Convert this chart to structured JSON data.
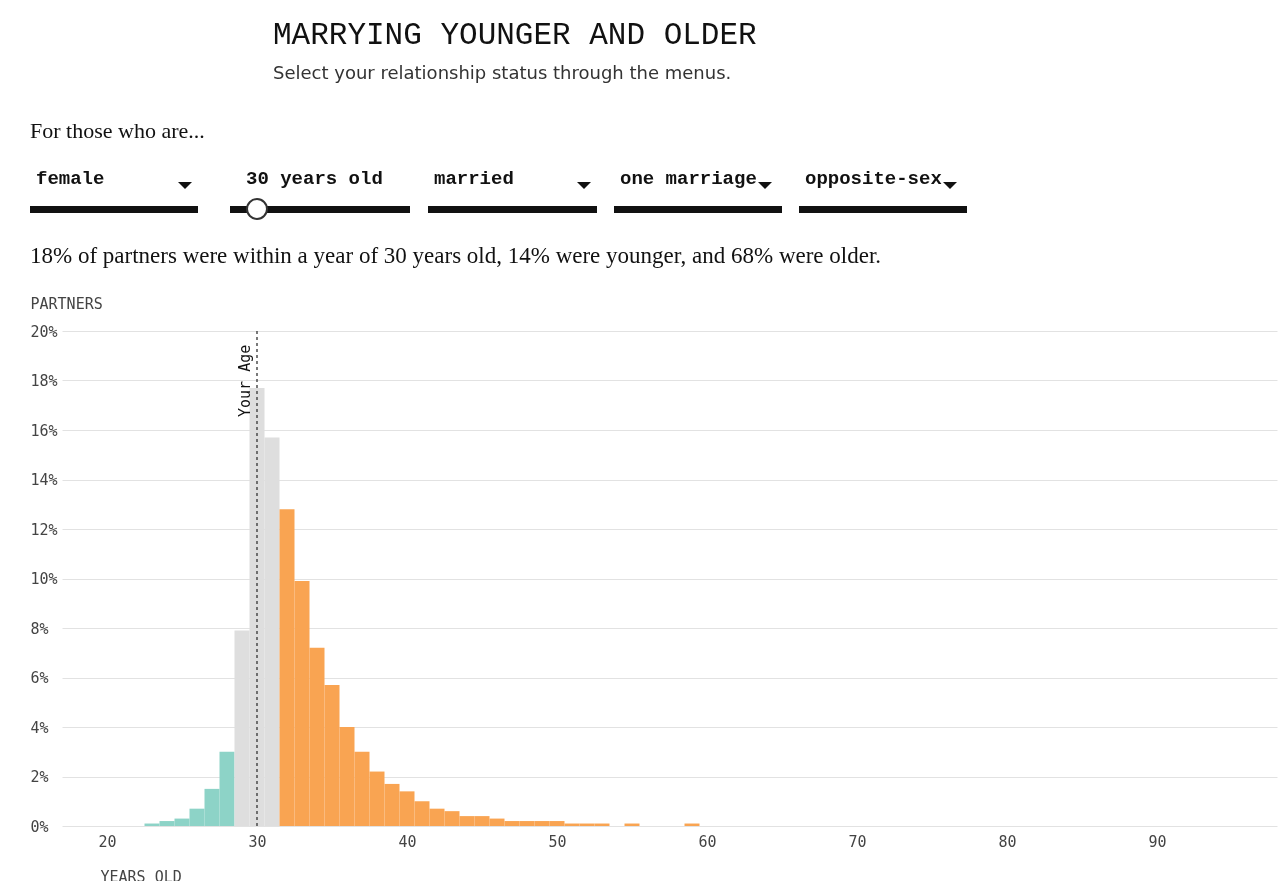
{
  "chart_data": {
    "type": "histogram",
    "title": "MARRYING YOUNGER AND OLDER",
    "subtitle": "Select your relationship status through the menus.",
    "xlabel": "YEARS OLD",
    "ylabel": "PARTNERS",
    "annotations": [
      "For those who are...",
      "female",
      "30 years old",
      "married",
      "one marriage",
      "opposite-sex",
      "18% of partners were within a year of 30 years old, 14% were younger, and 68% were older."
    ],
    "bins": [
      22.5,
      23.5,
      24.5,
      25.5,
      26.5,
      27.5,
      28.5,
      29.5,
      30.5,
      31.5,
      32.5,
      33.5,
      34.5,
      35.5,
      36.5,
      37.5,
      38.5,
      39.5,
      40.5,
      41.5,
      42.5,
      43.5,
      44.5,
      45.5,
      46.5,
      47.5,
      48.5,
      49.5,
      50.5,
      51.5,
      52.5,
      53.5,
      54.5,
      55.5,
      56.5,
      57.5,
      58.5,
      59.5
    ],
    "values": [
      0.1,
      0.2,
      0.3,
      0.7,
      1.5,
      3.0,
      7.9,
      17.7,
      15.7,
      12.8,
      9.9,
      7.2,
      5.7,
      4.0,
      3.0,
      2.2,
      1.7,
      1.4,
      1.0,
      0.7,
      0.6,
      0.4,
      0.4,
      0.3,
      0.2,
      0.2,
      0.2,
      0.2,
      0.1,
      0.1,
      0.1,
      0,
      0.1,
      0,
      0,
      0,
      0.1
    ],
    "colors": [
      "#8dd3c7",
      "#8dd3c7",
      "#8dd3c7",
      "#8dd3c7",
      "#8dd3c7",
      "#8dd3c7",
      "#dedede",
      "#dedede",
      "#dedede",
      "#f9a452",
      "#f9a452",
      "#f9a452",
      "#f9a452",
      "#f9a452",
      "#f9a452",
      "#f9a452",
      "#f9a452",
      "#f9a452",
      "#f9a452",
      "#f9a452",
      "#f9a452",
      "#f9a452",
      "#f9a452",
      "#f9a452",
      "#f9a452",
      "#f9a452",
      "#f9a452",
      "#f9a452",
      "#f9a452",
      "#f9a452",
      "#f9a452",
      "#f9a452",
      "#f9a452",
      "#f9a452",
      "#f9a452",
      "#f9a452",
      "#f9a452"
    ],
    "xlim": [
      17,
      98
    ],
    "xticks": [
      20,
      30,
      40,
      50,
      60,
      70,
      80,
      90
    ],
    "ylim": [
      0,
      20
    ],
    "yticks": [
      {
        "value": 0,
        "label": "0%"
      },
      {
        "value": 2,
        "label": "2%"
      },
      {
        "value": 4,
        "label": "4%"
      },
      {
        "value": 6,
        "label": "6%"
      },
      {
        "value": 8,
        "label": "8%"
      },
      {
        "value": 10,
        "label": "10%"
      },
      {
        "value": 12,
        "label": "12%"
      },
      {
        "value": 14,
        "label": "14%"
      },
      {
        "value": 16,
        "label": "16%"
      },
      {
        "value": 18,
        "label": "18%"
      },
      {
        "value": 20,
        "label": "20%"
      }
    ],
    "grid": "y",
    "ref_lines": [
      {
        "axis": "x",
        "value": 30,
        "label": "Your Age",
        "line_style": "dashed",
        "color": "#333333"
      }
    ]
  }
}
